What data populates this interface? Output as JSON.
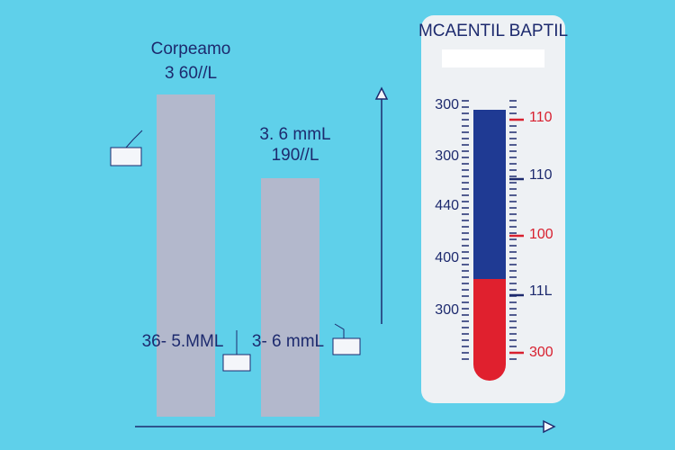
{
  "left_panel": {
    "bar_1": {
      "title": "Corpeamo",
      "subtitle": "3 60//L",
      "label": "36- 5.MML"
    },
    "bar_2": {
      "title": "3. 6 mmL",
      "subtitle": "190//L",
      "label": "3- 6 mmL"
    }
  },
  "thermometer": {
    "title": "MCAENTIL BAPTIL",
    "left_scale": [
      "300",
      "300",
      "440",
      "400",
      "300"
    ],
    "right_scale": [
      "110",
      "110",
      "100",
      "11L",
      "300"
    ]
  }
}
